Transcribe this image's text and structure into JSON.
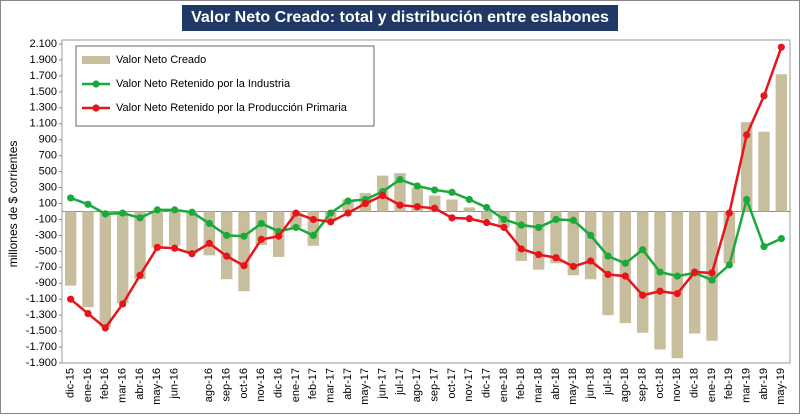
{
  "chart_data": {
    "type": "combo",
    "title": "Valor Neto Creado: total y distribución entre eslabones",
    "y_label": "millones de $ corrientes",
    "categories": [
      "dic-15",
      "ene-16",
      "feb-16",
      "mar-16",
      "abr-16",
      "may-16",
      "jun-16",
      null,
      "ago-16",
      "sep-16",
      "oct-16",
      "nov-16",
      "dic-16",
      "ene-17",
      "feb-17",
      "mar-17",
      "abr-17",
      "may-17",
      "jun-17",
      "jul-17",
      "ago-17",
      "sep-17",
      "oct-17",
      "nov-17",
      "dic-17",
      "ene-18",
      "feb-18",
      "mar-18",
      "abr-18",
      "may-18",
      "jun-18",
      "jul-18",
      "ago-18",
      "sep-18",
      "oct-18",
      "nov-18",
      "dic-18",
      "ene-19",
      "feb-19",
      "mar-19",
      "abr-19",
      "may-19"
    ],
    "series": [
      {
        "name": "Valor Neto Creado",
        "type": "bar",
        "color": "#c8bd9c",
        "values": [
          -930,
          -1200,
          -1450,
          -1150,
          -850,
          -450,
          -430,
          -520,
          -550,
          -850,
          -1000,
          -420,
          -570,
          -200,
          -430,
          -100,
          150,
          230,
          450,
          480,
          300,
          200,
          150,
          50,
          -100,
          -200,
          -620,
          -730,
          -650,
          -800,
          -850,
          -1300,
          -1400,
          -1520,
          -1730,
          -1840,
          -1530,
          -1620,
          -650,
          1120,
          1000,
          1720
        ]
      },
      {
        "name": "Valor Neto Retenido por la Industria",
        "type": "line",
        "color": "#1aaa3c",
        "values": [
          170,
          90,
          -30,
          -20,
          -80,
          20,
          20,
          -10,
          -150,
          -300,
          -310,
          -150,
          -250,
          -200,
          -300,
          -20,
          130,
          150,
          250,
          400,
          320,
          270,
          240,
          150,
          50,
          -100,
          -170,
          -200,
          -100,
          -110,
          -300,
          -560,
          -650,
          -480,
          -760,
          -810,
          -770,
          -860,
          -670,
          150,
          -440,
          -340
        ]
      },
      {
        "name": "Valor Neto Retenido por la Producción Primaria",
        "type": "line",
        "color": "#e8141c",
        "values": [
          -1100,
          -1280,
          -1460,
          -1160,
          -800,
          -450,
          -460,
          -530,
          -400,
          -560,
          -680,
          -350,
          -310,
          -20,
          -100,
          -130,
          -20,
          100,
          200,
          80,
          60,
          40,
          -80,
          -90,
          -140,
          -200,
          -470,
          -540,
          -580,
          -690,
          -620,
          -790,
          -810,
          -1050,
          -1000,
          -1030,
          -760,
          -770,
          -20,
          960,
          1450,
          2060
        ]
      }
    ],
    "ylim": [
      -1900,
      2100
    ],
    "yticks": [
      {
        "value": 2100,
        "label": "2.100"
      },
      {
        "value": 1900,
        "label": "1.900"
      },
      {
        "value": 1700,
        "label": "1.700"
      },
      {
        "value": 1500,
        "label": "1.500"
      },
      {
        "value": 1300,
        "label": "1.300"
      },
      {
        "value": 1100,
        "label": "1.100"
      },
      900,
      700,
      500,
      300,
      100,
      -100,
      -300,
      -500,
      -700,
      -900,
      {
        "value": -1100,
        "label": "-1.100"
      },
      {
        "value": -1300,
        "label": "-1.300"
      },
      {
        "value": -1500,
        "label": "-1.500"
      },
      {
        "value": -1700,
        "label": "-1.700"
      },
      {
        "value": -1900,
        "label": "-1.900"
      }
    ],
    "legend": "top-left"
  }
}
